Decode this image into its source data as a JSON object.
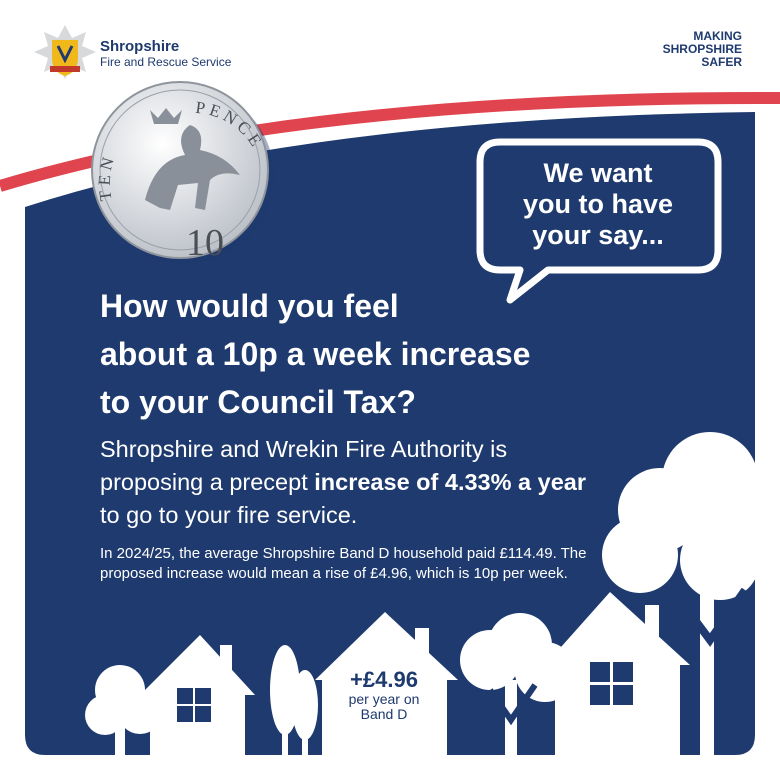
{
  "header": {
    "org_name": "Shropshire",
    "org_subtitle": "Fire and Rescue Service",
    "tagline": [
      "MAKING",
      "SHROPSHIRE",
      "SAFER"
    ]
  },
  "coin": {
    "top_left": "TEN",
    "top_right": "PENCE",
    "numeral": "10"
  },
  "speech_bubble": [
    "We want",
    "you to have",
    "your say..."
  ],
  "headline": [
    "How would you feel",
    "about a 10p a week increase",
    "to your Council Tax?"
  ],
  "body": [
    {
      "text": "Shropshire and Wrekin Fire Authority is proposing a precept ",
      "bold": false
    },
    {
      "text": "increase of 4.33% a year",
      "bold": true
    },
    {
      "text": " to go to your fire service.",
      "bold": false
    }
  ],
  "fine_print": "In 2024/25, the average Shropshire Band D household paid £114.49. The proposed increase would mean a rise of £4.96, which is 10p per week.",
  "house_label": {
    "amount": "+£4.96",
    "line1": "per year on",
    "line2": "Band D"
  }
}
